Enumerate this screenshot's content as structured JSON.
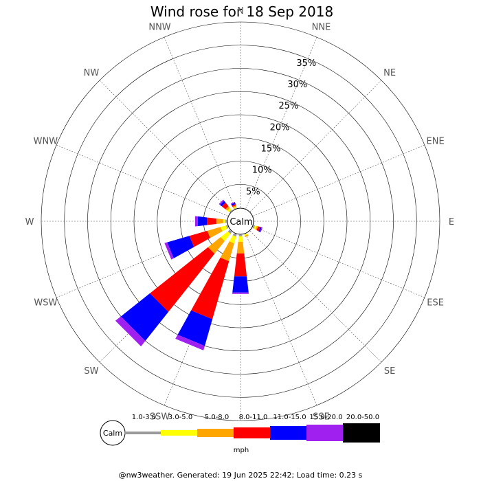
{
  "title": "Wind rose for 18 Sep 2018",
  "calm_label": "Calm",
  "unit_label": "mph",
  "footer": "@nw3weather. Generated: 19 Jun 2025 22:42; Load time: 0.23 s",
  "chart_data": {
    "type": "windrose",
    "title": "Wind rose for 18 Sep 2018",
    "directions": [
      "N",
      "NNE",
      "NE",
      "ENE",
      "E",
      "ESE",
      "SE",
      "SSE",
      "S",
      "SSW",
      "SW",
      "WSW",
      "W",
      "WNW",
      "NW",
      "NNW"
    ],
    "ring_labels": [
      "5%",
      "10%",
      "15%",
      "20%",
      "25%",
      "30%",
      "35%"
    ],
    "radial_max": 40,
    "speed_bins": [
      {
        "label": "1.0-3.0",
        "color": "#999999"
      },
      {
        "label": "3.0-5.0",
        "color": "#ffff00"
      },
      {
        "label": "5.0-8.0",
        "color": "#ffa500"
      },
      {
        "label": "8.0-11.0",
        "color": "#ff0000"
      },
      {
        "label": "11.0-15.0",
        "color": "#0000ff"
      },
      {
        "label": "15.0-20.0",
        "color": "#a020f0"
      },
      {
        "label": "20.0-50.0",
        "color": "#000000"
      }
    ],
    "unit": "mph",
    "calm": "Calm",
    "frequencies_percent": {
      "N": [
        0,
        0,
        0,
        0,
        0,
        0,
        0
      ],
      "NNE": [
        0,
        0,
        0,
        0,
        0,
        0,
        0
      ],
      "NE": [
        0,
        0,
        0,
        0,
        0,
        0,
        0
      ],
      "ENE": [
        0,
        0,
        0,
        0,
        0,
        0,
        0
      ],
      "E": [
        0,
        0,
        0,
        0,
        0,
        0,
        0
      ],
      "ESE": [
        0.3,
        0.4,
        0.3,
        0.5,
        0.3,
        0.2,
        0
      ],
      "SE": [
        0,
        0,
        0,
        0,
        0,
        0,
        0
      ],
      "SSE": [
        0,
        0.3,
        0.3,
        0,
        0,
        0,
        0
      ],
      "S": [
        0.3,
        1.2,
        2.5,
        5.0,
        3.5,
        0.3,
        0
      ],
      "SSW": [
        0.5,
        1.5,
        4.0,
        13.0,
        6.0,
        1.0,
        0
      ],
      "SW": [
        0.5,
        2.0,
        3.5,
        16.0,
        8.0,
        1.5,
        0
      ],
      "WSW": [
        0.3,
        1.2,
        3.0,
        4.0,
        5.0,
        0.6,
        0
      ],
      "W": [
        0.3,
        0.5,
        1.5,
        2.0,
        2.0,
        0.6,
        0
      ],
      "WNW": [
        0,
        0,
        0,
        0,
        0,
        0,
        0
      ],
      "NW": [
        0.2,
        0.5,
        0.5,
        1.0,
        0.5,
        0.3,
        0
      ],
      "NNW": [
        0.1,
        0.2,
        0.3,
        0.3,
        0.3,
        0.2,
        0
      ]
    }
  }
}
